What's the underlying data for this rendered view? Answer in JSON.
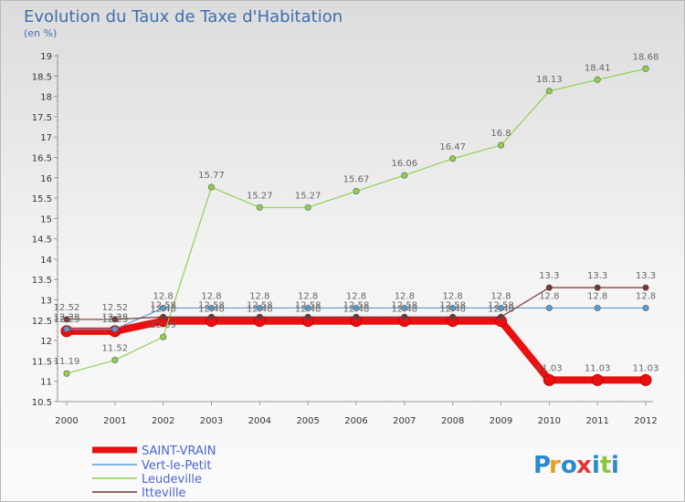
{
  "chart_data": {
    "type": "line",
    "title": "Evolution du Taux de Taxe d'Habitation",
    "subtitle": "(en %)",
    "x": [
      "2000",
      "2001",
      "2002",
      "2003",
      "2004",
      "2005",
      "2006",
      "2007",
      "2008",
      "2009",
      "2010",
      "2011",
      "2012"
    ],
    "ylim": [
      10.5,
      19
    ],
    "yticks": [
      "10.5",
      "11",
      "11.5",
      "12",
      "12.5",
      "13",
      "13.5",
      "14",
      "14.5",
      "15",
      "15.5",
      "16",
      "16.5",
      "17",
      "17.5",
      "18",
      "18.5",
      "19"
    ],
    "grid": false,
    "legend_position": "bottom-left",
    "series": [
      {
        "name": "SAINT-VRAIN",
        "color": "#e81010",
        "values": [
          12.23,
          12.23,
          12.48,
          12.48,
          12.48,
          12.48,
          12.48,
          12.48,
          12.48,
          12.48,
          11.03,
          11.03,
          11.03
        ],
        "labels": [
          "12.23",
          "12.23",
          "12.48",
          "12.48",
          "12.48",
          "12.48",
          "12.48",
          "12.48",
          "12.48",
          "12.48",
          "11.03",
          "11.03",
          "11.03"
        ]
      },
      {
        "name": "Vert-le-Petit",
        "color": "#5b9bd0",
        "values": [
          12.28,
          12.28,
          12.8,
          12.8,
          12.8,
          12.8,
          12.8,
          12.8,
          12.8,
          12.8,
          12.8,
          12.8,
          12.8
        ],
        "labels": [
          "12.28",
          "12.28",
          "12.8",
          "12.8",
          "12.8",
          "12.8",
          "12.8",
          "12.8",
          "12.8",
          "12.8",
          "12.8",
          "12.8",
          "12.8"
        ]
      },
      {
        "name": "Leudeville",
        "color": "#8fd14f",
        "values": [
          11.19,
          11.52,
          12.09,
          15.77,
          15.27,
          15.27,
          15.67,
          16.06,
          16.47,
          16.8,
          18.13,
          18.41,
          18.68
        ],
        "labels": [
          "11.19",
          "11.52",
          "12.09",
          "15.77",
          "15.27",
          "15.27",
          "15.67",
          "16.06",
          "16.47",
          "16.8",
          "18.13",
          "18.41",
          "18.68"
        ]
      },
      {
        "name": "Itteville",
        "color": "#7a3434",
        "values": [
          12.52,
          12.52,
          12.58,
          12.58,
          12.58,
          12.58,
          12.58,
          12.58,
          12.58,
          12.58,
          13.3,
          13.3,
          13.3
        ],
        "labels": [
          "12.52",
          "12.52",
          "12.58",
          "12.58",
          "12.58",
          "12.58",
          "12.58",
          "12.58",
          "12.58",
          "12.58",
          "13.3",
          "13.3",
          "13.3"
        ]
      }
    ]
  },
  "brand": {
    "letters": [
      "P",
      "r",
      "o",
      "x",
      "i",
      "t",
      "i"
    ],
    "colors": [
      "#2a8ad0",
      "#e8a020",
      "#2a8ad0",
      "#e03a3a",
      "#2a8ad0",
      "#8fc43a",
      "#2a8ad0"
    ]
  }
}
